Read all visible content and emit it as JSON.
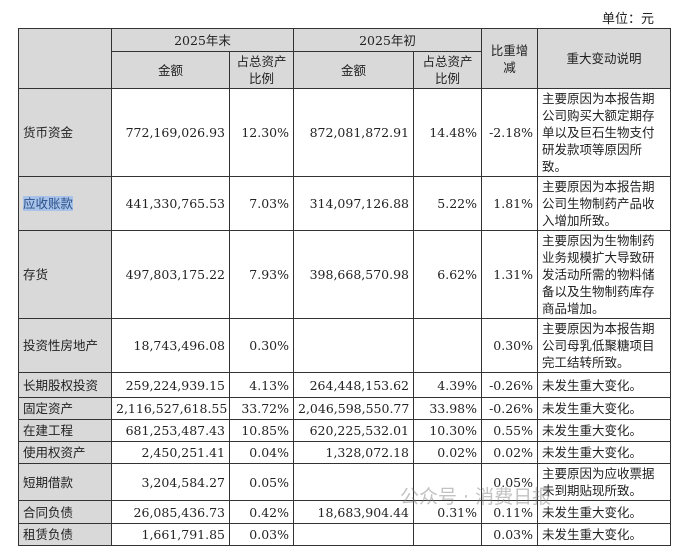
{
  "unit": "单位：元",
  "header": {
    "period_end": "2025年末",
    "period_start": "2025年初",
    "amount": "金额",
    "ratio": "占总资产比例",
    "change": "比重增减",
    "description": "重大变动说明"
  },
  "rows": [
    {
      "item": "货币资金",
      "end_amount": "772,169,026.93",
      "end_ratio": "12.30%",
      "start_amount": "872,081,872.91",
      "start_ratio": "14.48%",
      "change": "-2.18%",
      "note": "主要原因为本报告期公司购买大额定期存单以及巨石生物支付研发款项等原因所致。"
    },
    {
      "item": "应收账款",
      "end_amount": "441,330,765.53",
      "end_ratio": "7.03%",
      "start_amount": "314,097,126.88",
      "start_ratio": "5.22%",
      "change": "1.81%",
      "note": "主要原因为本报告期公司生物制药产品收入增加所致。",
      "selected": true
    },
    {
      "item": "存货",
      "end_amount": "497,803,175.22",
      "end_ratio": "7.93%",
      "start_amount": "398,668,570.98",
      "start_ratio": "6.62%",
      "change": "1.31%",
      "note": "主要原因为生物制药业务规模扩大导致研发活动所需的物料储备以及生物制药库存商品增加。"
    },
    {
      "item": "投资性房地产",
      "end_amount": "18,743,496.08",
      "end_ratio": "0.30%",
      "start_amount": "",
      "start_ratio": "",
      "change": "0.30%",
      "note": "主要原因为本报告期公司母乳低聚糖项目完工结转所致。"
    },
    {
      "item": "长期股权投资",
      "end_amount": "259,224,939.15",
      "end_ratio": "4.13%",
      "start_amount": "264,448,153.62",
      "start_ratio": "4.39%",
      "change": "-0.26%",
      "note": "未发生重大变化。"
    },
    {
      "item": "固定资产",
      "end_amount": "2,116,527,618.55",
      "end_ratio": "33.72%",
      "start_amount": "2,046,598,550.77",
      "start_ratio": "33.98%",
      "change": "-0.26%",
      "note": "未发生重大变化。"
    },
    {
      "item": "在建工程",
      "end_amount": "681,253,487.43",
      "end_ratio": "10.85%",
      "start_amount": "620,225,532.01",
      "start_ratio": "10.30%",
      "change": "0.55%",
      "note": "未发生重大变化。"
    },
    {
      "item": "使用权资产",
      "end_amount": "2,450,251.41",
      "end_ratio": "0.04%",
      "start_amount": "1,328,072.18",
      "start_ratio": "0.02%",
      "change": "0.02%",
      "note": "未发生重大变化。"
    },
    {
      "item": "短期借款",
      "end_amount": "3,204,584.27",
      "end_ratio": "0.05%",
      "start_amount": "",
      "start_ratio": "",
      "change": "0.05%",
      "note": "主要原因为应收票据未到期贴现所致。"
    },
    {
      "item": "合同负债",
      "end_amount": "26,085,436.73",
      "end_ratio": "0.42%",
      "start_amount": "18,683,904.44",
      "start_ratio": "0.31%",
      "change": "0.11%",
      "note": "未发生重大变化。"
    },
    {
      "item": "租赁负债",
      "end_amount": "1,661,791.85",
      "end_ratio": "0.03%",
      "start_amount": "",
      "start_ratio": "",
      "change": "0.03%",
      "note": "未发生重大变化。"
    }
  ],
  "watermark": "公众号 · 消费日报"
}
